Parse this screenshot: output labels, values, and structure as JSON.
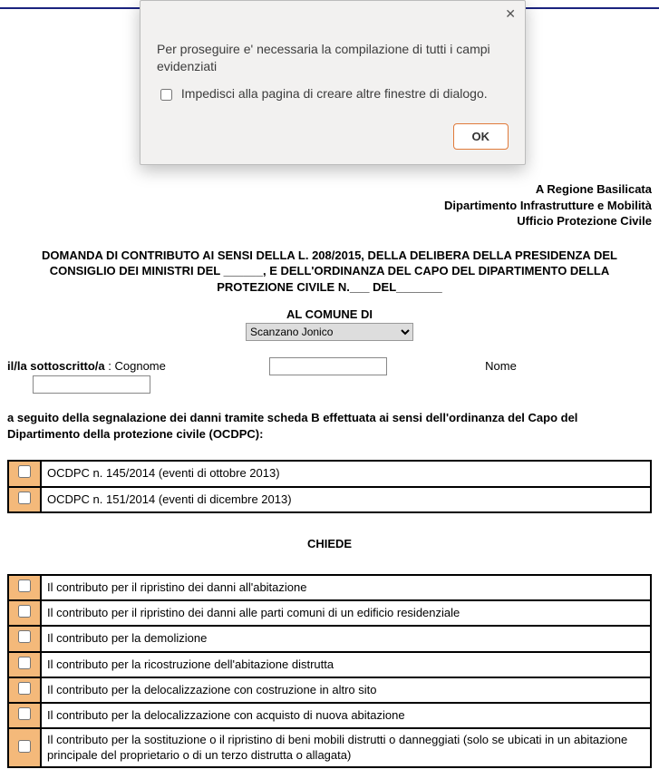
{
  "dialog": {
    "message": "Per proseguire e' necessaria la compilazione di tutti i campi evidenziati",
    "suppress_label": "Impedisci alla pagina di creare altre finestre di dialogo.",
    "ok_label": "OK"
  },
  "address": {
    "line1": "A Regione Basilicata",
    "line2": "Dipartimento Infrastrutture e Mobilità",
    "line3": "Ufficio Protezione Civile"
  },
  "title": "DOMANDA DI CONTRIBUTO AI SENSI DELLA L. 208/2015, DELLA DELIBERA DELLA PRESIDENZA DEL CONSIGLIO DEI MINISTRI DEL ______, E DELL'ORDINANZA DEL CAPO DEL DIPARTIMENTO DELLA PROTEZIONE CIVILE N.___ DEL_______",
  "comune": {
    "label": "AL COMUNE DI",
    "selected": "Scanzano Jonico"
  },
  "sottoscritto": {
    "prefix": "il/la sottoscritto/a",
    "cognome_label": "Cognome",
    "cognome_value": "",
    "nome_label": "Nome",
    "nome_value": ""
  },
  "seguito": "a seguito della segnalazione dei danni tramite scheda B effettuata ai sensi dell'ordinanza del Capo del Dipartimento della protezione civile (OCDPC):",
  "ocdpc": [
    "OCDPC n. 145/2014 (eventi di ottobre 2013)",
    "OCDPC n. 151/2014 (eventi di dicembre 2013)"
  ],
  "chiede_label": "CHIEDE",
  "richieste": [
    "Il contributo per il ripristino dei danni all'abitazione",
    "Il contributo per il ripristino dei danni alle parti comuni di un edificio residenziale",
    "Il contributo per la demolizione",
    "Il contributo per la ricostruzione dell'abitazione distrutta",
    "Il contributo per la delocalizzazione con costruzione in altro sito",
    "Il contributo per la delocalizzazione con acquisto di nuova abitazione",
    "Il contributo per la sostituzione o il ripristino di beni mobili distrutti o danneggiati (solo se ubicati in un abitazione principale del proprietario o di un terzo distrutta o allagata)"
  ],
  "colors": {
    "checkbox_cell_bg": "#f4b97a",
    "rule": "#1a237e",
    "dialog_bg": "#f2f1f0",
    "ok_border": "#e07a3a"
  }
}
